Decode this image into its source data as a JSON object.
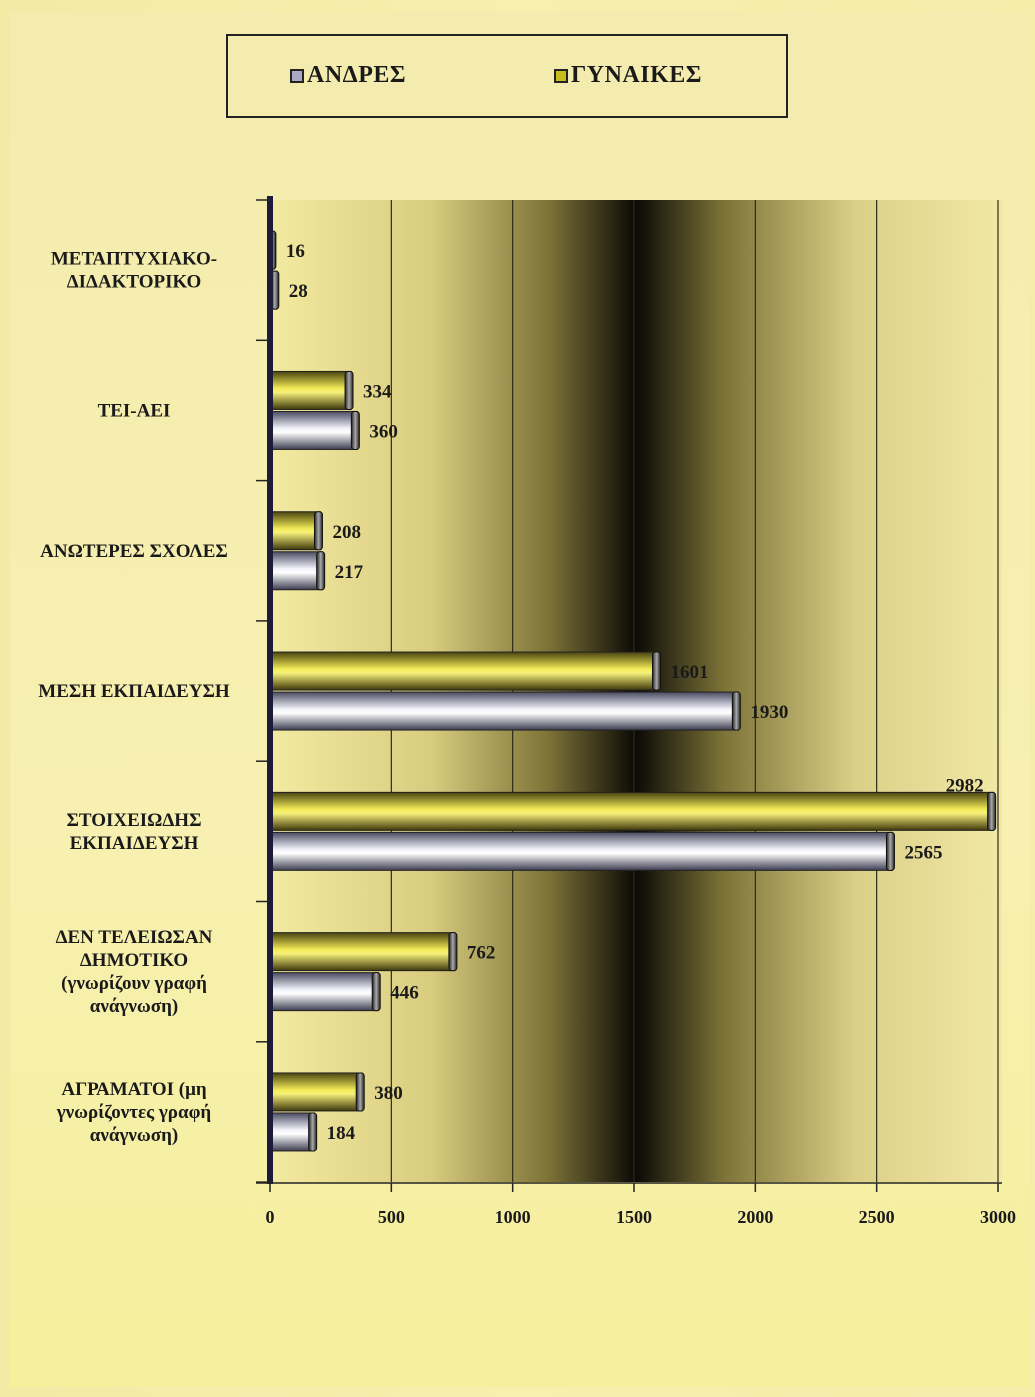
{
  "chart_data": {
    "type": "bar",
    "orientation": "horizontal",
    "categories": [
      "ΜΕΤΑΠΤΥΧΙΑΚΟ-ΔΙΔΑΚΤΟΡΙΚΟ",
      "ΤΕΙ-ΑΕΙ",
      "ΑΝΩΤΕΡΕΣ ΣΧΟΛΕΣ",
      "ΜΕΣΗ ΕΚΠΑΙΔΕΥΣΗ",
      "ΣΤΟΙΧΕΙΩΔΗΣ ΕΚΠΑΙΔΕΥΣΗ",
      "ΔΕΝ ΤΕΛΕΙΩΣΑΝ ΔΗΜΟΤΙΚΟ (γνωρίζουν γραφή ανάγνωση)",
      "ΑΓΡΑΜΑΤΟΙ (μη γνωρίζοντες γραφή ανάγνωση)"
    ],
    "category_lines": [
      [
        "ΜΕΤΑΠΤΥΧΙΑΚΟ-",
        "ΔΙΔΑΚΤΟΡΙΚΟ"
      ],
      [
        "ΤΕΙ-ΑΕΙ"
      ],
      [
        "ΑΝΩΤΕΡΕΣ ΣΧΟΛΕΣ"
      ],
      [
        "ΜΕΣΗ ΕΚΠΑΙΔΕΥΣΗ"
      ],
      [
        "ΣΤΟΙΧΕΙΩΔΗΣ",
        "ΕΚΠΑΙΔΕΥΣΗ"
      ],
      [
        "ΔΕΝ ΤΕΛΕΙΩΣΑΝ",
        "ΔΗΜΟΤΙΚΟ",
        "(γνωρίζουν γραφή",
        "ανάγνωση)"
      ],
      [
        "ΑΓΡΑΜΑΤΟΙ (μη",
        "γνωρίζοντες γραφή",
        "ανάγνωση)"
      ]
    ],
    "series": [
      {
        "name": "ΓΥΝΑΙΚΕΣ",
        "color": "#c9bd1e",
        "values": [
          16,
          334,
          208,
          1601,
          2982,
          762,
          380
        ]
      },
      {
        "name": "ΑΝΔΡΕΣ",
        "color": "#a9a9c4",
        "values": [
          28,
          360,
          217,
          1930,
          2565,
          446,
          184
        ]
      }
    ],
    "xlim": [
      0,
      3000
    ],
    "xticks": [
      0,
      500,
      1000,
      1500,
      2000,
      2500,
      3000
    ],
    "grid": true,
    "legend_position": "top"
  },
  "legend": {
    "men_label": "ΑΝΔΡΕΣ",
    "women_label": "ΓΥΝΑΙΚΕΣ"
  }
}
